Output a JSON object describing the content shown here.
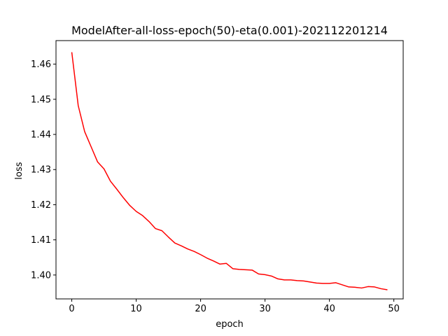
{
  "chart_data": {
    "type": "line",
    "title": "ModelAfter-all-loss-epoch(50)-eta(0.001)-202112201214",
    "xlabel": "epoch",
    "ylabel": "loss",
    "xlim": [
      -2.45,
      51.45
    ],
    "ylim": [
      1.3932,
      1.4667
    ],
    "xticks": [
      0,
      10,
      20,
      30,
      40,
      50
    ],
    "yticks": [
      1.4,
      1.41,
      1.42,
      1.43,
      1.44,
      1.45,
      1.46
    ],
    "grid": false,
    "legend": "none",
    "series": [
      {
        "color": "#ff0000",
        "x": [
          0,
          1,
          2,
          3,
          4,
          5,
          6,
          7,
          8,
          9,
          10,
          11,
          12,
          13,
          14,
          15,
          16,
          17,
          18,
          19,
          20,
          21,
          22,
          23,
          24,
          25,
          26,
          27,
          28,
          29,
          30,
          31,
          32,
          33,
          34,
          35,
          36,
          37,
          38,
          39,
          40,
          41,
          42,
          43,
          44,
          45,
          46,
          47,
          48,
          49
        ],
        "y": [
          1.4634,
          1.4482,
          1.4408,
          1.4365,
          1.4322,
          1.4302,
          1.4267,
          1.4244,
          1.422,
          1.4198,
          1.4181,
          1.4169,
          1.4152,
          1.4132,
          1.4126,
          1.4108,
          1.4091,
          1.4083,
          1.4074,
          1.4067,
          1.4058,
          1.4048,
          1.404,
          1.4031,
          1.4033,
          1.4018,
          1.4016,
          1.4015,
          1.4014,
          1.4003,
          1.4001,
          1.3997,
          1.3989,
          1.3986,
          1.3986,
          1.3984,
          1.3983,
          1.398,
          1.3977,
          1.3976,
          1.3976,
          1.3978,
          1.3972,
          1.3966,
          1.3965,
          1.3963,
          1.3967,
          1.3966,
          1.3961,
          1.3958
        ]
      }
    ]
  }
}
